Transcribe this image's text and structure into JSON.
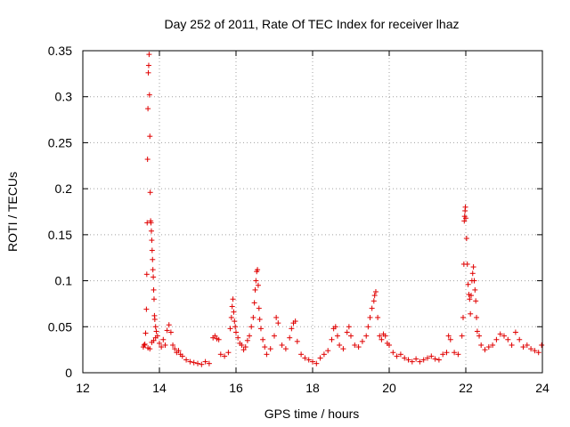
{
  "chart_data": {
    "type": "scatter",
    "title": "Day 252 of 2011, Rate Of TEC Index for receiver lhaz",
    "xlabel": "GPS time / hours",
    "ylabel": "ROTI / TECUs",
    "xlim": [
      12,
      24
    ],
    "ylim": [
      0,
      0.35
    ],
    "xticks": [
      "12",
      "14",
      "16",
      "18",
      "20",
      "22",
      "24"
    ],
    "yticks": [
      "0",
      "0.05",
      "0.1",
      "0.15",
      "0.2",
      "0.25",
      "0.3",
      "0.35"
    ],
    "grid": true,
    "marker": "plus",
    "color": "#e00000",
    "series": [
      {
        "points": [
          [
            13.62,
            0.031
          ],
          [
            13.64,
            0.043
          ],
          [
            13.66,
            0.069
          ],
          [
            13.67,
            0.107
          ],
          [
            13.68,
            0.163
          ],
          [
            13.69,
            0.232
          ],
          [
            13.7,
            0.287
          ],
          [
            13.71,
            0.326
          ],
          [
            13.72,
            0.334
          ],
          [
            13.73,
            0.346
          ],
          [
            13.74,
            0.302
          ],
          [
            13.75,
            0.257
          ],
          [
            13.76,
            0.196
          ],
          [
            13.77,
            0.165
          ],
          [
            13.78,
            0.163
          ],
          [
            13.79,
            0.154
          ],
          [
            13.8,
            0.144
          ],
          [
            13.81,
            0.133
          ],
          [
            13.82,
            0.123
          ],
          [
            13.83,
            0.112
          ],
          [
            13.84,
            0.104
          ],
          [
            13.85,
            0.09
          ],
          [
            13.86,
            0.08
          ],
          [
            13.87,
            0.062
          ],
          [
            13.88,
            0.058
          ],
          [
            13.9,
            0.05
          ],
          [
            13.92,
            0.045
          ],
          [
            13.6,
            0.03
          ],
          [
            13.58,
            0.028
          ],
          [
            13.7,
            0.027
          ],
          [
            13.75,
            0.026
          ],
          [
            13.8,
            0.033
          ],
          [
            13.85,
            0.035
          ],
          [
            13.9,
            0.038
          ],
          [
            13.95,
            0.04
          ],
          [
            14.0,
            0.032
          ],
          [
            14.05,
            0.028
          ],
          [
            14.1,
            0.036
          ],
          [
            14.15,
            0.03
          ],
          [
            14.2,
            0.046
          ],
          [
            14.25,
            0.052
          ],
          [
            14.3,
            0.044
          ],
          [
            14.35,
            0.03
          ],
          [
            14.4,
            0.026
          ],
          [
            14.45,
            0.022
          ],
          [
            14.5,
            0.024
          ],
          [
            14.55,
            0.02
          ],
          [
            14.6,
            0.018
          ],
          [
            14.7,
            0.014
          ],
          [
            14.8,
            0.012
          ],
          [
            14.9,
            0.011
          ],
          [
            15.0,
            0.01
          ],
          [
            15.1,
            0.009
          ],
          [
            15.2,
            0.012
          ],
          [
            15.3,
            0.01
          ],
          [
            15.4,
            0.038
          ],
          [
            15.45,
            0.04
          ],
          [
            15.5,
            0.037
          ],
          [
            15.55,
            0.036
          ],
          [
            15.6,
            0.02
          ],
          [
            15.7,
            0.018
          ],
          [
            15.8,
            0.022
          ],
          [
            15.85,
            0.048
          ],
          [
            15.88,
            0.06
          ],
          [
            15.9,
            0.072
          ],
          [
            15.92,
            0.08
          ],
          [
            15.94,
            0.066
          ],
          [
            15.96,
            0.056
          ],
          [
            15.98,
            0.05
          ],
          [
            16.0,
            0.044
          ],
          [
            16.05,
            0.038
          ],
          [
            16.1,
            0.032
          ],
          [
            16.15,
            0.03
          ],
          [
            16.2,
            0.025
          ],
          [
            16.25,
            0.028
          ],
          [
            16.3,
            0.035
          ],
          [
            16.35,
            0.04
          ],
          [
            16.4,
            0.05
          ],
          [
            16.45,
            0.06
          ],
          [
            16.48,
            0.076
          ],
          [
            16.5,
            0.09
          ],
          [
            16.52,
            0.1
          ],
          [
            16.54,
            0.11
          ],
          [
            16.56,
            0.112
          ],
          [
            16.58,
            0.095
          ],
          [
            16.6,
            0.07
          ],
          [
            16.62,
            0.058
          ],
          [
            16.65,
            0.048
          ],
          [
            16.7,
            0.036
          ],
          [
            16.75,
            0.028
          ],
          [
            16.8,
            0.02
          ],
          [
            16.9,
            0.026
          ],
          [
            17.0,
            0.04
          ],
          [
            17.05,
            0.06
          ],
          [
            17.1,
            0.054
          ],
          [
            17.2,
            0.03
          ],
          [
            17.3,
            0.026
          ],
          [
            17.4,
            0.038
          ],
          [
            17.45,
            0.048
          ],
          [
            17.5,
            0.054
          ],
          [
            17.55,
            0.056
          ],
          [
            17.6,
            0.034
          ],
          [
            17.7,
            0.02
          ],
          [
            17.8,
            0.016
          ],
          [
            17.9,
            0.014
          ],
          [
            18.0,
            0.012
          ],
          [
            18.1,
            0.01
          ],
          [
            18.2,
            0.016
          ],
          [
            18.3,
            0.02
          ],
          [
            18.4,
            0.024
          ],
          [
            18.5,
            0.036
          ],
          [
            18.55,
            0.048
          ],
          [
            18.6,
            0.05
          ],
          [
            18.65,
            0.04
          ],
          [
            18.7,
            0.03
          ],
          [
            18.8,
            0.026
          ],
          [
            18.9,
            0.044
          ],
          [
            18.95,
            0.05
          ],
          [
            19.0,
            0.04
          ],
          [
            19.1,
            0.03
          ],
          [
            19.2,
            0.028
          ],
          [
            19.3,
            0.034
          ],
          [
            19.4,
            0.04
          ],
          [
            19.45,
            0.05
          ],
          [
            19.5,
            0.06
          ],
          [
            19.55,
            0.07
          ],
          [
            19.6,
            0.078
          ],
          [
            19.62,
            0.084
          ],
          [
            19.65,
            0.088
          ],
          [
            19.7,
            0.06
          ],
          [
            19.75,
            0.04
          ],
          [
            19.8,
            0.036
          ],
          [
            19.85,
            0.042
          ],
          [
            19.9,
            0.04
          ],
          [
            19.95,
            0.032
          ],
          [
            20.0,
            0.03
          ],
          [
            20.1,
            0.022
          ],
          [
            20.2,
            0.018
          ],
          [
            20.3,
            0.02
          ],
          [
            20.4,
            0.016
          ],
          [
            20.5,
            0.014
          ],
          [
            20.6,
            0.012
          ],
          [
            20.7,
            0.015
          ],
          [
            20.8,
            0.012
          ],
          [
            20.9,
            0.014
          ],
          [
            21.0,
            0.016
          ],
          [
            21.1,
            0.018
          ],
          [
            21.2,
            0.015
          ],
          [
            21.3,
            0.014
          ],
          [
            21.4,
            0.02
          ],
          [
            21.5,
            0.022
          ],
          [
            21.55,
            0.04
          ],
          [
            21.6,
            0.036
          ],
          [
            21.7,
            0.022
          ],
          [
            21.8,
            0.02
          ],
          [
            21.9,
            0.04
          ],
          [
            21.93,
            0.06
          ],
          [
            21.95,
            0.118
          ],
          [
            21.96,
            0.165
          ],
          [
            21.97,
            0.17
          ],
          [
            21.98,
            0.176
          ],
          [
            21.99,
            0.18
          ],
          [
            22.0,
            0.168
          ],
          [
            22.02,
            0.146
          ],
          [
            22.04,
            0.118
          ],
          [
            22.06,
            0.096
          ],
          [
            22.08,
            0.085
          ],
          [
            22.1,
            0.08
          ],
          [
            22.12,
            0.064
          ],
          [
            22.14,
            0.084
          ],
          [
            22.16,
            0.1
          ],
          [
            22.18,
            0.108
          ],
          [
            22.2,
            0.115
          ],
          [
            22.22,
            0.1
          ],
          [
            22.24,
            0.09
          ],
          [
            22.26,
            0.078
          ],
          [
            22.28,
            0.06
          ],
          [
            22.3,
            0.045
          ],
          [
            22.35,
            0.04
          ],
          [
            22.4,
            0.03
          ],
          [
            22.5,
            0.025
          ],
          [
            22.6,
            0.028
          ],
          [
            22.7,
            0.03
          ],
          [
            22.8,
            0.036
          ],
          [
            22.9,
            0.042
          ],
          [
            23.0,
            0.04
          ],
          [
            23.1,
            0.036
          ],
          [
            23.2,
            0.03
          ],
          [
            23.3,
            0.044
          ],
          [
            23.4,
            0.036
          ],
          [
            23.5,
            0.028
          ],
          [
            23.6,
            0.03
          ],
          [
            23.7,
            0.026
          ],
          [
            23.8,
            0.024
          ],
          [
            23.9,
            0.022
          ],
          [
            23.98,
            0.03
          ]
        ]
      }
    ]
  }
}
